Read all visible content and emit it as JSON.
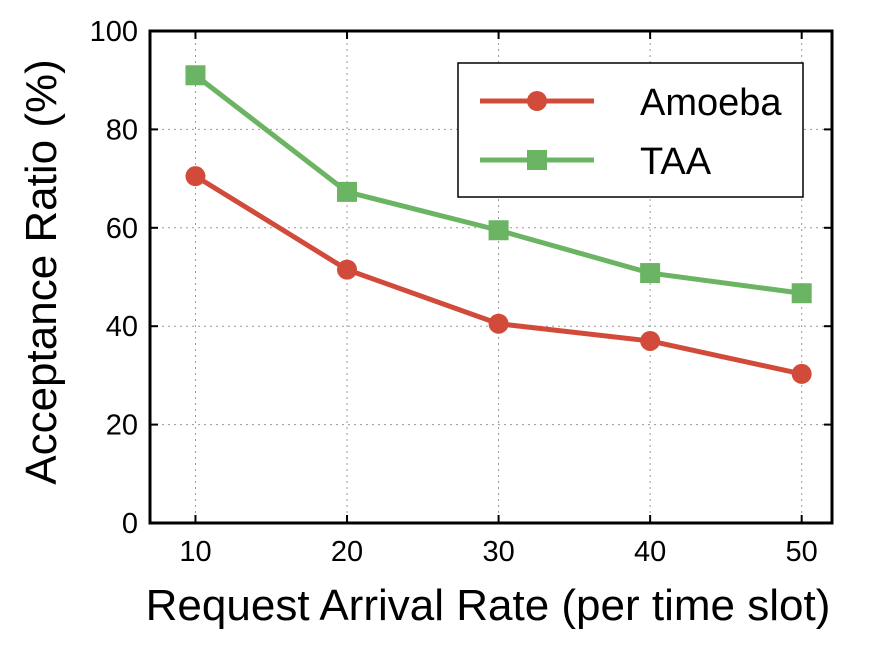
{
  "chart_data": {
    "type": "line",
    "xlabel": "Request Arrival Rate (per time slot)",
    "ylabel": "Acceptance Ratio (%)",
    "x": [
      10,
      20,
      30,
      40,
      50
    ],
    "xticks": [
      "10",
      "20",
      "30",
      "40",
      "50"
    ],
    "xlim": [
      7,
      52
    ],
    "ylim": [
      0,
      100
    ],
    "yticks": [
      "0",
      "20",
      "40",
      "60",
      "80",
      "100"
    ],
    "grid": true,
    "legend_position": "top-right",
    "series": [
      {
        "name": "Amoeba",
        "values": [
          70.5,
          51.5,
          40.5,
          37,
          30.3
        ],
        "color": "#d24b3a",
        "marker": "circle"
      },
      {
        "name": "TAA",
        "values": [
          91,
          67.3,
          59.5,
          50.8,
          46.7
        ],
        "color": "#6ab463",
        "marker": "square"
      }
    ]
  }
}
